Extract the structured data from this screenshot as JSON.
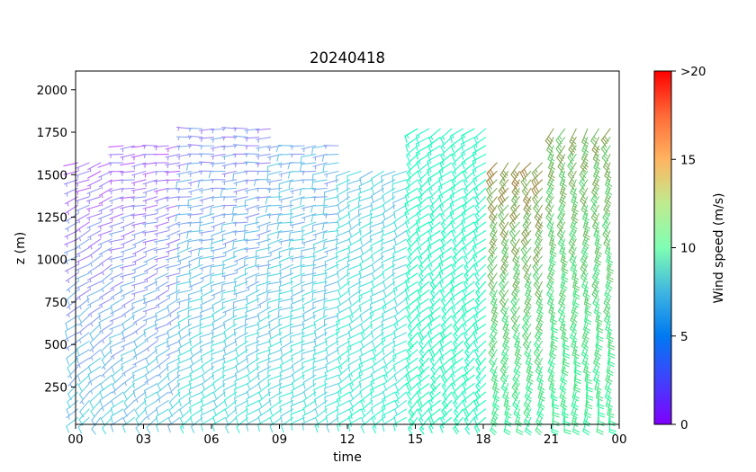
{
  "chart_data": {
    "type": "wind-barb",
    "title": "20240418",
    "xlabel": "time",
    "ylabel": "z (m)",
    "x_tick_labels": [
      "00",
      "03",
      "06",
      "09",
      "12",
      "15",
      "18",
      "21",
      "00"
    ],
    "x_range_hours": [
      0,
      24
    ],
    "y_ticks": [
      250,
      500,
      750,
      1000,
      1250,
      1500,
      1750,
      2000
    ],
    "ylim": [
      30,
      2110
    ],
    "colorbar": {
      "label": "Wind speed (m/s)",
      "tick_labels": [
        "0",
        "5",
        "10",
        "15",
        ">20"
      ],
      "tick_values": [
        0,
        5,
        10,
        15,
        20
      ],
      "range": [
        0,
        20
      ],
      "colormap": "rainbow"
    },
    "profiles": [
      {
        "hour_start": 0.0,
        "hour_end": 2.0,
        "top_m": 1600,
        "speed_low_ms": 6,
        "speed_high_ms": 3,
        "dir_low_deg": 225,
        "dir_high_deg": 250
      },
      {
        "hour_start": 2.0,
        "hour_end": 5.0,
        "top_m": 1700,
        "speed_low_ms": 6,
        "speed_high_ms": 3,
        "dir_low_deg": 230,
        "dir_high_deg": 265
      },
      {
        "hour_start": 5.0,
        "hour_end": 9.0,
        "top_m": 1800,
        "speed_low_ms": 7,
        "speed_high_ms": 4,
        "dir_low_deg": 235,
        "dir_high_deg": 270
      },
      {
        "hour_start": 9.0,
        "hour_end": 12.0,
        "top_m": 1700,
        "speed_low_ms": 7,
        "speed_high_ms": 5,
        "dir_low_deg": 240,
        "dir_high_deg": 265
      },
      {
        "hour_start": 12.0,
        "hour_end": 15.0,
        "top_m": 1550,
        "speed_low_ms": 8,
        "speed_high_ms": 6,
        "dir_low_deg": 235,
        "dir_high_deg": 245
      },
      {
        "hour_start": 15.0,
        "hour_end": 18.5,
        "top_m": 1800,
        "speed_low_ms": 10,
        "speed_high_ms": 9,
        "dir_low_deg": 225,
        "dir_high_deg": 235
      },
      {
        "hour_start": 18.5,
        "hour_end": 21.0,
        "top_m": 1600,
        "speed_low_ms": 12,
        "speed_high_ms": 16,
        "dir_low_deg": 200,
        "dir_high_deg": 220
      },
      {
        "hour_start": 21.0,
        "hour_end": 24.0,
        "top_m": 1800,
        "speed_low_ms": 12,
        "speed_high_ms": 15,
        "dir_low_deg": 190,
        "dir_high_deg": 210
      }
    ]
  }
}
